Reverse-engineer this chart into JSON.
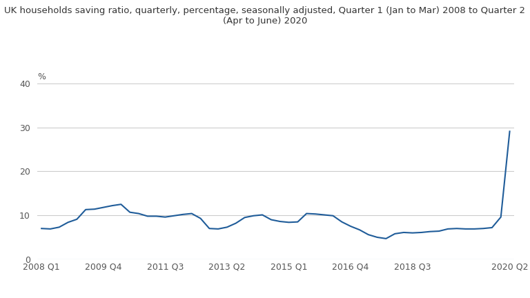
{
  "title_line1": "UK households saving ratio, quarterly, percentage, seasonally adjusted, Quarter 1 (Jan to Mar) 2008 to Quarter 2",
  "title_line2": "(Apr to June) 2020",
  "ylabel_text": "%",
  "line_color": "#1f5c99",
  "background_color": "#ffffff",
  "grid_color": "#cccccc",
  "ylim": [
    0,
    40
  ],
  "yticks": [
    0,
    10,
    20,
    30,
    40
  ],
  "x_tick_labels": [
    "2008 Q1",
    "2009 Q4",
    "2011 Q3",
    "2013 Q2",
    "2015 Q1",
    "2016 Q4",
    "2018 Q3",
    "2020 Q2"
  ],
  "x_tick_positions": [
    0,
    7,
    14,
    21,
    28,
    35,
    42,
    53
  ],
  "values": [
    7.0,
    6.9,
    7.3,
    8.4,
    9.1,
    11.3,
    11.4,
    11.8,
    12.2,
    12.5,
    10.7,
    10.4,
    9.8,
    9.8,
    9.6,
    9.9,
    10.2,
    10.4,
    9.3,
    7.0,
    6.9,
    7.3,
    8.2,
    9.5,
    9.9,
    10.1,
    9.0,
    8.6,
    8.4,
    8.5,
    10.4,
    10.3,
    10.1,
    9.9,
    8.5,
    7.5,
    6.7,
    5.6,
    5.0,
    4.7,
    5.8,
    6.1,
    6.0,
    6.1,
    6.3,
    6.4,
    6.9,
    7.0,
    6.9,
    6.9,
    7.0,
    7.2,
    9.6,
    29.1
  ]
}
